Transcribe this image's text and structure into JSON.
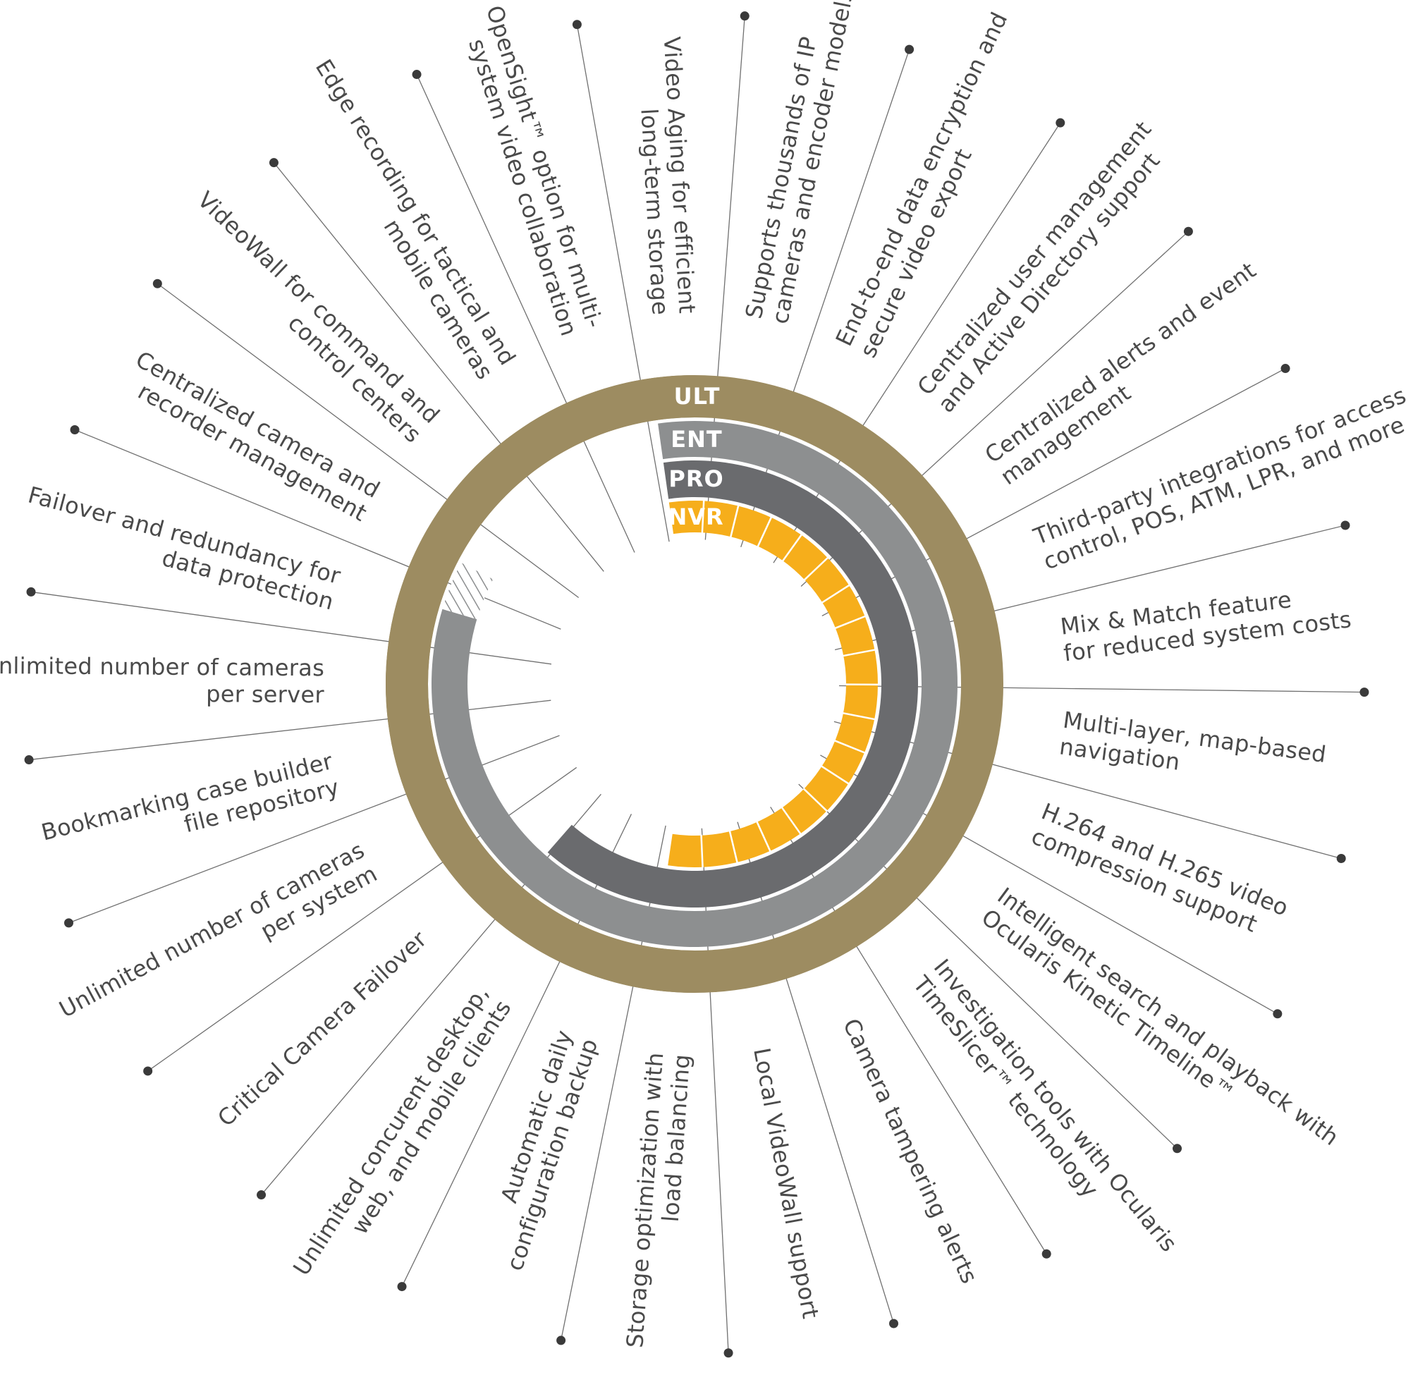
{
  "colors": {
    "ult": "#9d8c61",
    "ent": "#8d8f90",
    "pro": "#6a6b6e",
    "nvr": "#f6ae1b",
    "line": "#707070",
    "text": "#4a4a4a",
    "dot": "#3a3a3a"
  },
  "tiers": [
    {
      "key": "ult",
      "label": "ULT",
      "features": 33
    },
    {
      "key": "ent",
      "label": "ENT",
      "features": 27
    },
    {
      "key": "pro",
      "label": "PRO",
      "features": 21
    },
    {
      "key": "nvr",
      "label": "NVR",
      "features": 18
    }
  ],
  "features": [
    "Supports thousands of IP\ncameras and encoder models",
    "End-to-end data encryption and\nsecure video export",
    "Centralized user management\nand Active Directory support",
    "Centralized alerts and event\nmanagement",
    "Third-party integrations for access\ncontrol, POS, ATM, LPR, and more",
    "Mix & Match feature\nfor reduced system costs",
    "Multi-layer, map-based\nnavigation",
    "H.264 and H.265 video\ncompression support",
    "Intelligent search and playback with\nOcularis Kinetic Timeline™",
    "Investigation tools with Ocularis\nTimeSlicer™ technology",
    "Camera tampering alerts",
    "Local VideoWall support",
    "Storage optimization with\nload balancing",
    "Automatic daily\nconfiguration backup",
    "Unlimited concurent desktop,\nweb, and mobile clients",
    "Critical Camera Failover",
    "Unlimited number of cameras\nper system",
    "Bookmarking case builder\nfile repository",
    "Unlimited number of cameras\nper server",
    "Failover and redundancy for\ndata protection",
    "Centralized camera and\nrecorder management",
    "VideoWall for command and\ncontrol centers",
    "Edge recording for tactical and\nmobile cameras",
    "OpenSight™ option for multi-\nsystem video collaboration",
    "Video Aging for efficient\nlong-term storage"
  ]
}
